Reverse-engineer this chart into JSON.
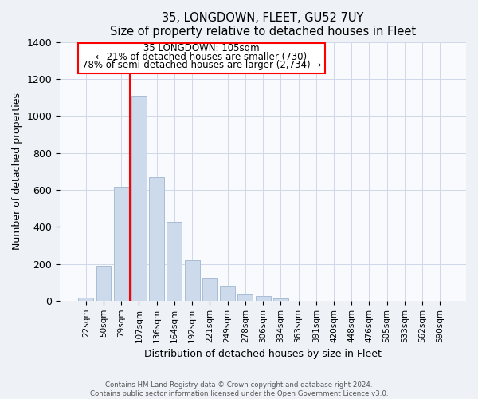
{
  "title": "35, LONGDOWN, FLEET, GU52 7UY",
  "subtitle": "Size of property relative to detached houses in Fleet",
  "xlabel": "Distribution of detached houses by size in Fleet",
  "ylabel": "Number of detached properties",
  "bar_color": "#ccdaeb",
  "bar_edge_color": "#a8bdd4",
  "categories": [
    "22sqm",
    "50sqm",
    "79sqm",
    "107sqm",
    "136sqm",
    "164sqm",
    "192sqm",
    "221sqm",
    "249sqm",
    "278sqm",
    "306sqm",
    "334sqm",
    "363sqm",
    "391sqm",
    "420sqm",
    "448sqm",
    "476sqm",
    "505sqm",
    "533sqm",
    "562sqm",
    "590sqm"
  ],
  "values": [
    15,
    190,
    615,
    1110,
    670,
    425,
    220,
    125,
    75,
    32,
    25,
    12,
    0,
    0,
    0,
    0,
    0,
    0,
    0,
    0,
    0
  ],
  "ylim": [
    0,
    1400
  ],
  "yticks": [
    0,
    200,
    400,
    600,
    800,
    1000,
    1200,
    1400
  ],
  "property_line_label": "35 LONGDOWN: 105sqm",
  "annotation_line1": "← 21% of detached houses are smaller (730)",
  "annotation_line2": "78% of semi-detached houses are larger (2,734) →",
  "footer_line1": "Contains HM Land Registry data © Crown copyright and database right 2024.",
  "footer_line2": "Contains public sector information licensed under the Open Government Licence v3.0.",
  "background_color": "#eef2f7",
  "plot_background": "#f8fafd",
  "grid_color": "#d0d8e8"
}
